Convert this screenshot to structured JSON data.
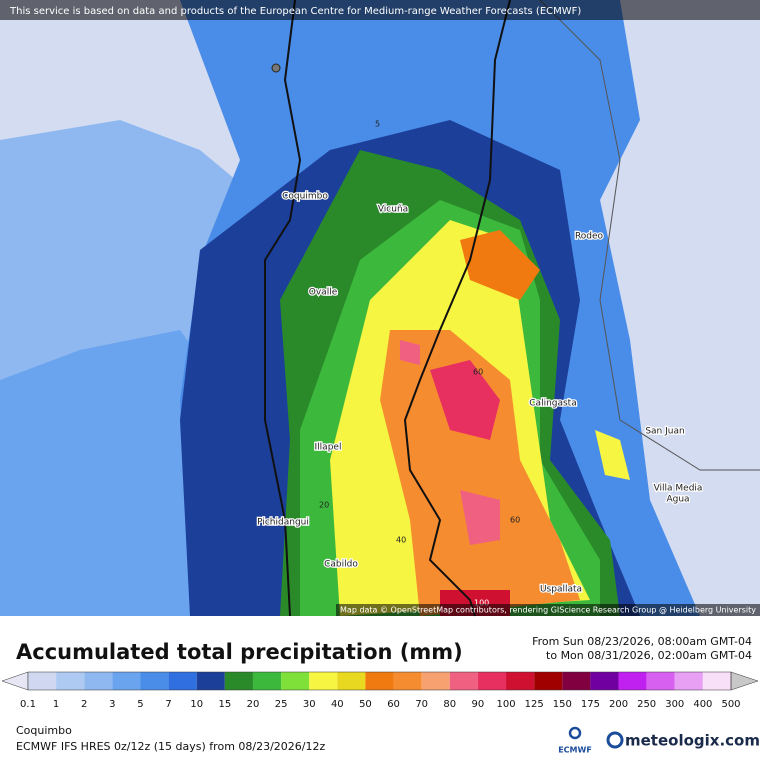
{
  "banner": "This service is based on data and products of the European Centre for Medium-range Weather Forecasts (ECMWF)",
  "map": {
    "places": [
      "Coquimbo",
      "Vicuña",
      "Rodeo",
      "Ovalle",
      "Calingasta",
      "San Juan",
      "Illapel",
      "Villa Media",
      "Agua",
      "Pichidangui",
      "Cabildo",
      "Uspallata"
    ],
    "contour_labels": [
      "5",
      "60",
      "20",
      "40",
      "60",
      "100"
    ],
    "attribution": "Map data © OpenStreetMap contributors, rendering GIScience Research Group @ Heidelberg University"
  },
  "title": "Accumulated total precipitation (mm)",
  "date_range": {
    "from": "From Sun 08/23/2026, 08:00am GMT-04",
    "to": "to Mon 08/31/2026, 02:00am GMT-04"
  },
  "colorbar": {
    "labels": [
      "0.1",
      "1",
      "2",
      "3",
      "5",
      "7",
      "10",
      "15",
      "20",
      "25",
      "30",
      "40",
      "50",
      "60",
      "70",
      "80",
      "90",
      "100",
      "125",
      "150",
      "175",
      "200",
      "250",
      "300",
      "400",
      "500"
    ],
    "colors": [
      "#e6e6f5",
      "#cfd8f0",
      "#aec9f2",
      "#8fb8f0",
      "#6aa3ee",
      "#4a8de8",
      "#2f6fe0",
      "#1c3f9a",
      "#2a8a2a",
      "#3cb83c",
      "#7fe03a",
      "#f5f542",
      "#e8d820",
      "#f07a10",
      "#f58c30",
      "#f7a070",
      "#f06080",
      "#e83060",
      "#d01030",
      "#a00000",
      "#800040",
      "#7000a0",
      "#c020f0",
      "#d860f0",
      "#e8a0f5",
      "#f8e0f8",
      "#c8c8c8"
    ]
  },
  "location": "Coquimbo",
  "model_run": "ECMWF IFS HRES 0z/12z (15 days) from  08/23/2026/12z",
  "logos": {
    "ecmwf": "ECMWF",
    "brand": "meteologix.com"
  }
}
